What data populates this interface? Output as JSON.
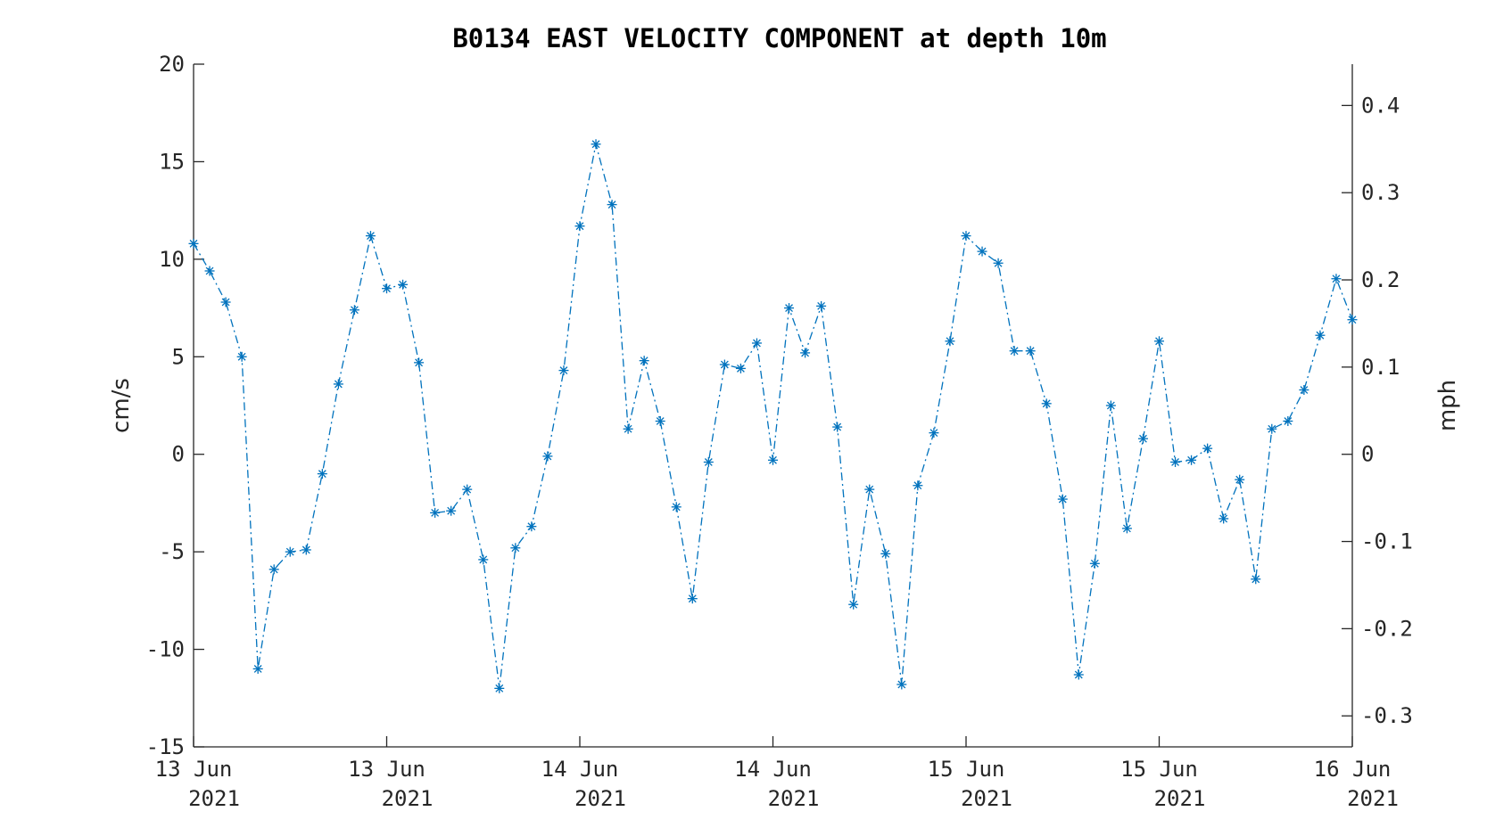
{
  "chart_data": {
    "type": "line",
    "title": "B0134 EAST VELOCITY COMPONENT at depth 10m",
    "ylabel": "cm/s",
    "ylabel_right": "mph",
    "ylim": [
      -15,
      20
    ],
    "y_ticks": [
      "-15",
      "-10",
      "-5",
      "0",
      "5",
      "10",
      "15",
      "20"
    ],
    "y_ticks_right": [
      "-0.3",
      "-0.2",
      "-0.1",
      "0",
      "0.1",
      "0.2",
      "0.3",
      "0.4"
    ],
    "x_ticks": [
      {
        "line1": "13 Jun",
        "line2": "2021"
      },
      {
        "line1": "13 Jun",
        "line2": "2021"
      },
      {
        "line1": "14 Jun",
        "line2": "2021"
      },
      {
        "line1": "14 Jun",
        "line2": "2021"
      },
      {
        "line1": "15 Jun",
        "line2": "2021"
      },
      {
        "line1": "15 Jun",
        "line2": "2021"
      },
      {
        "line1": "16 Jun",
        "line2": "2021"
      }
    ],
    "grid": false,
    "line_style": "dash-dot",
    "marker": "asterisk",
    "color": "#0072BD",
    "series": [
      {
        "values": [
          10.8,
          9.4,
          7.8,
          5.0,
          -11.0,
          -5.9,
          -5.0,
          -4.9,
          -1.0,
          3.6,
          7.4,
          11.2,
          8.5,
          8.7,
          4.7,
          -3.0,
          -2.9,
          -1.8,
          -5.4,
          -12.0,
          -4.8,
          -3.7,
          -0.1,
          4.3,
          11.7,
          15.9,
          12.8,
          1.3,
          4.8,
          1.7,
          -2.7,
          -7.4,
          -0.4,
          4.6,
          4.4,
          5.7,
          -0.3,
          7.5,
          5.2,
          7.6,
          1.4,
          -7.7,
          -1.8,
          -5.1,
          -11.8,
          -1.6,
          1.1,
          5.8,
          11.2,
          10.4,
          9.8,
          5.3,
          5.3,
          2.6,
          -2.3,
          -11.3,
          -5.6,
          2.5,
          -3.8,
          0.8,
          5.8,
          -0.4,
          -0.3,
          0.3,
          -3.3,
          -1.3,
          -6.4,
          1.3,
          1.7,
          3.3,
          6.1,
          9.0,
          6.9
        ]
      }
    ]
  }
}
